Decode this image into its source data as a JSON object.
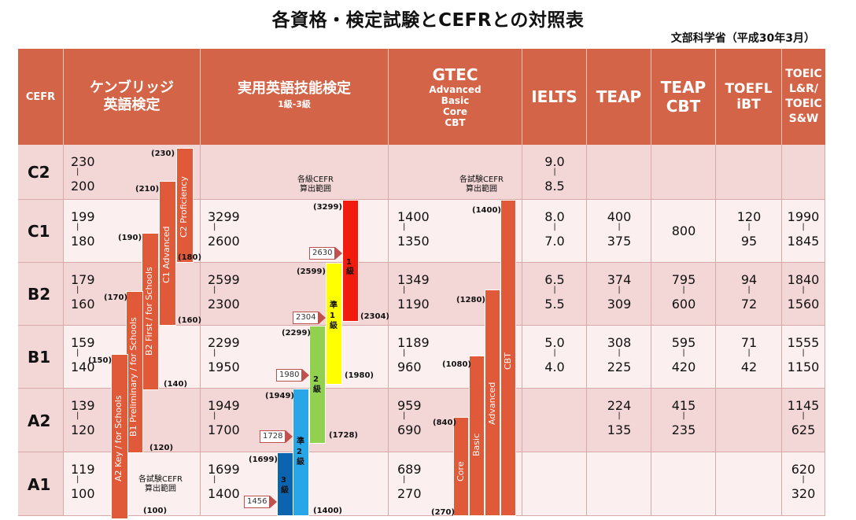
{
  "title": "各資格・検定試験とCEFRとの対照表",
  "subtitle": "文部科学省（平成30年3月）",
  "colors": {
    "header_bg": "#D46448",
    "row_dark": "#F3D6D6",
    "row_light": "#FBEFEF",
    "line": "#D7A9A9",
    "bar_red": "#E05A3A",
    "eiken_1": "#F21C0E",
    "eiken_p1": "#FFFF00",
    "eiken_2": "#92D050",
    "eiken_p2": "#29A6E8",
    "eiken_3": "#0C63B0"
  },
  "headers": {
    "cefr": "CEFR",
    "cambridge": [
      "ケンブリッジ",
      "英語検定"
    ],
    "eiken": {
      "title": "実用英語技能検定",
      "sub": "1級-3級"
    },
    "gtec": {
      "title": "GTEC",
      "subs": [
        "Advanced",
        "Basic",
        "Core",
        "CBT"
      ]
    },
    "ielts": "IELTS",
    "teap": "TEAP",
    "teap_cbt": [
      "TEAP",
      "CBT"
    ],
    "toefl": [
      "TOEFL",
      "iBT"
    ],
    "toeic": [
      "TOEIC",
      "L&R/",
      "TOEIC",
      "S&W"
    ]
  },
  "rows": [
    {
      "grade": "C2",
      "cam": [
        "230",
        "200"
      ],
      "eiken": [
        "",
        ""
      ],
      "gtec": [
        "",
        ""
      ],
      "ielts": [
        "9.0",
        "8.5"
      ],
      "teap": [
        "",
        ""
      ],
      "teap_cbt": "",
      "toefl": [
        "",
        ""
      ],
      "toeic": [
        "",
        ""
      ]
    },
    {
      "grade": "C1",
      "cam": [
        "199",
        "180"
      ],
      "eiken": [
        "3299",
        "2600"
      ],
      "gtec": [
        "1400",
        "1350"
      ],
      "ielts": [
        "8.0",
        "7.0"
      ],
      "teap": [
        "400",
        "375"
      ],
      "teap_cbt": "800",
      "toefl": [
        "120",
        "95"
      ],
      "toeic": [
        "1990",
        "1845"
      ]
    },
    {
      "grade": "B2",
      "cam": [
        "179",
        "160"
      ],
      "eiken": [
        "2599",
        "2300"
      ],
      "gtec": [
        "1349",
        "1190"
      ],
      "ielts": [
        "6.5",
        "5.5"
      ],
      "teap": [
        "374",
        "309"
      ],
      "teap_cbt": [
        "795",
        "600"
      ],
      "toefl": [
        "94",
        "72"
      ],
      "toeic": [
        "1840",
        "1560"
      ]
    },
    {
      "grade": "B1",
      "cam": [
        "159",
        "140"
      ],
      "eiken": [
        "2299",
        "1950"
      ],
      "gtec": [
        "1189",
        "960"
      ],
      "ielts": [
        "5.0",
        "4.0"
      ],
      "teap": [
        "308",
        "225"
      ],
      "teap_cbt": [
        "595",
        "420"
      ],
      "toefl": [
        "71",
        "42"
      ],
      "toeic": [
        "1555",
        "1150"
      ]
    },
    {
      "grade": "A2",
      "cam": [
        "139",
        "120"
      ],
      "eiken": [
        "1949",
        "1700"
      ],
      "gtec": [
        "959",
        "690"
      ],
      "ielts": [
        "",
        ""
      ],
      "teap": [
        "224",
        "135"
      ],
      "teap_cbt": [
        "415",
        "235"
      ],
      "toefl": [
        "",
        ""
      ],
      "toeic": [
        "1145",
        "625"
      ]
    },
    {
      "grade": "A1",
      "cam": [
        "119",
        "100"
      ],
      "eiken": [
        "1699",
        "1400"
      ],
      "gtec": [
        "689",
        "270"
      ],
      "ielts": [
        "",
        ""
      ],
      "teap": [
        "",
        ""
      ],
      "teap_cbt": [
        "",
        ""
      ],
      "toefl": [
        "",
        ""
      ],
      "toeic": [
        "620",
        "320"
      ]
    }
  ],
  "notes": {
    "eiken_range": [
      "各級CEFR",
      "算出範囲"
    ],
    "gtec_range": [
      "各試験CEFR",
      "算出範囲"
    ],
    "cam_range": [
      "各試験CEFR",
      "算出範囲"
    ]
  },
  "cambridge_bars": {
    "c2": {
      "label": "C2 Proficiency",
      "top": "(230)",
      "bottom": "(180)"
    },
    "c1": {
      "label": "C1 Advanced",
      "top": "(210)",
      "bottom": "(160)"
    },
    "b2": {
      "label": "B2 First / for Schools",
      "top": "(190)",
      "bottom": "(140)"
    },
    "b1": {
      "label": "B1 Preliminary / for Schools",
      "top": "(170)",
      "bottom": "(120)"
    },
    "a2": {
      "label": "A2 Key / for Schools",
      "top": "(150)",
      "bottom": "(100)"
    }
  },
  "eiken_bars": {
    "g1": {
      "label": "1級",
      "top": "(3299)",
      "bottom": "(2304)",
      "tag": "2630"
    },
    "gp1": {
      "label": "準1級",
      "top": "(2599)",
      "bottom": "(1980)",
      "tag": "2304"
    },
    "g2": {
      "label": "2級",
      "top": "(2299)",
      "bottom": "(1728)",
      "tag": "1980"
    },
    "gp2": {
      "label": "準2級",
      "top": "(1949)",
      "bottom": "(1400)",
      "tag": "1728"
    },
    "g3": {
      "label": "3級",
      "top": "(1699)",
      "tag": "1456"
    }
  },
  "gtec_bars": {
    "cbt": {
      "label": "CBT",
      "top": "(1400)"
    },
    "advanced": {
      "label": "Advanced",
      "top": "(1280)"
    },
    "basic": {
      "label": "Basic",
      "top": "(1080)"
    },
    "core": {
      "label": "Core",
      "top": "(840)",
      "bottom": "(270)"
    }
  }
}
